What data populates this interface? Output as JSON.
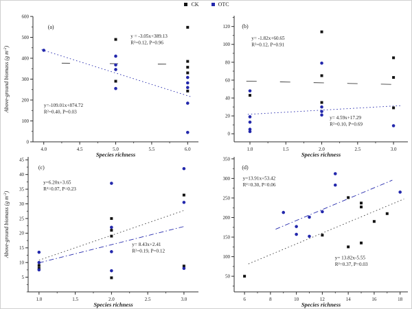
{
  "figure": {
    "legend": {
      "items": [
        {
          "label": "CK",
          "color": "#141414",
          "marker": "square"
        },
        {
          "label": "OTC",
          "color": "#2328ac",
          "marker": "square"
        }
      ]
    },
    "series_colors": {
      "CK": "#141414",
      "OTC": "#2328ac"
    },
    "line_colors": {
      "CK": "#3d3d3d",
      "OTC": "#2328ac"
    }
  },
  "chart_data": [
    {
      "id": "a",
      "panel_label": "(a)",
      "type": "scatter",
      "xlabel": "Species richness",
      "ylabel": {
        "text": "Above-ground biomass (g m",
        "sup": "-2",
        "end": ")"
      },
      "xlim": [
        3.85,
        6.15
      ],
      "ylim": [
        0,
        600
      ],
      "xtick_vals": [
        4.0,
        4.5,
        5.0,
        5.5,
        6.0
      ],
      "xtick_labels": [
        "4.0",
        "4.5",
        "5.0",
        "5.5",
        "6.0"
      ],
      "ytick_vals": [
        0,
        100,
        200,
        300,
        400,
        500,
        600
      ],
      "ytick_labels": [
        "0",
        "100",
        "200",
        "300",
        "400",
        "500",
        "600"
      ],
      "xminor_step": 0.25,
      "yminor_step": 50,
      "series": [
        {
          "name": "CK",
          "marker": "square",
          "points": [
            [
              5,
              490
            ],
            [
              5,
              290
            ],
            [
              6,
              548
            ],
            [
              6,
              385
            ],
            [
              6,
              357
            ],
            [
              6,
              330
            ],
            [
              6,
              243
            ]
          ]
        },
        {
          "name": "OTC",
          "marker": "circle",
          "points": [
            [
              4,
              438
            ],
            [
              5,
              410
            ],
            [
              5,
              368
            ],
            [
              5,
              346
            ],
            [
              5,
              255
            ],
            [
              6,
              308
            ],
            [
              6,
              282
            ],
            [
              6,
              260
            ],
            [
              6,
              185
            ],
            [
              6,
              45
            ]
          ]
        }
      ],
      "reg_lines": [
        {
          "series": "CK",
          "style": "sparsedash",
          "x1": 4.25,
          "y1": 376.2,
          "x2": 6.12,
          "y2": 370.5
        },
        {
          "series": "OTC",
          "style": "dot",
          "x1": 3.97,
          "y1": 441,
          "x2": 6.06,
          "y2": 214
        }
      ],
      "annotations": [
        {
          "owner": "CK",
          "fx": 0.59,
          "fy": 0.17,
          "lines": [
            "y = -3.05x+389.13",
            "R²=0.12, P=0.96"
          ]
        },
        {
          "owner": "OTC",
          "fx": 0.066,
          "fy": 0.72,
          "lines": [
            "y=-109.01x+874.72",
            "R²=0.40, P=0.03"
          ]
        }
      ],
      "label_fx": 0.09
    },
    {
      "id": "b",
      "panel_label": "(b)",
      "type": "scatter",
      "xlabel": "Species richness",
      "xlim": [
        0.78,
        3.2
      ],
      "ylim": [
        -9,
        132
      ],
      "xtick_vals": [
        1.0,
        1.5,
        2.0,
        2.5,
        3.0
      ],
      "xtick_labels": [
        "1.0",
        "1.5",
        "2.0",
        "2.5",
        "3.0"
      ],
      "ytick_vals": [
        0,
        20,
        40,
        60,
        80,
        100,
        120
      ],
      "ytick_labels": [
        "0",
        "20",
        "40",
        "60",
        "80",
        "100",
        "120"
      ],
      "xminor_step": 0.25,
      "yminor_step": 10,
      "series": [
        {
          "name": "CK",
          "marker": "square",
          "points": [
            [
              1,
              43
            ],
            [
              2,
              114
            ],
            [
              2,
              65
            ],
            [
              2,
              35
            ],
            [
              3,
              85
            ],
            [
              3,
              63
            ],
            [
              3,
              29
            ]
          ]
        },
        {
          "name": "OTC",
          "marker": "circle",
          "points": [
            [
              1,
              48
            ],
            [
              1,
              19
            ],
            [
              1,
              13
            ],
            [
              1,
              5
            ],
            [
              1,
              2.5
            ],
            [
              2,
              79
            ],
            [
              2,
              30
            ],
            [
              2,
              25
            ],
            [
              2,
              21
            ],
            [
              3,
              9
            ]
          ]
        }
      ],
      "reg_lines": [
        {
          "series": "CK",
          "style": "longdash",
          "x1": 0.95,
          "y1": 58.9,
          "x2": 3.15,
          "y2": 54.9
        },
        {
          "series": "OTC",
          "style": "dot",
          "x1": 0.97,
          "y1": 21.7,
          "x2": 3.12,
          "y2": 31.6
        }
      ],
      "annotations": [
        {
          "owner": "CK",
          "fx": 0.1,
          "fy": 0.19,
          "lines": [
            "y= -1.82x+60.65",
            "R²=0.12, P=0.91"
          ]
        },
        {
          "owner": "OTC",
          "fx": 0.55,
          "fy": 0.82,
          "lines": [
            "y= 4.59x+17.29",
            "R²=0.10, P=0.69"
          ]
        }
      ],
      "label_fx": 0.045
    },
    {
      "id": "c",
      "panel_label": "(c)",
      "type": "scatter",
      "xlabel": "Species richness",
      "ylabel": {
        "text": "Above-ground biomass (g m",
        "sup": "-2",
        "end": ")"
      },
      "xlim": [
        0.85,
        3.2
      ],
      "ylim": [
        0,
        46
      ],
      "xtick_vals": [
        1.0,
        1.5,
        2.0,
        2.5,
        3.0
      ],
      "xtick_labels": [
        "1.0",
        "1.5",
        "2.0",
        "2.5",
        "3.0"
      ],
      "ytick_vals": [
        5,
        10,
        15,
        20,
        25,
        30,
        35,
        40,
        45
      ],
      "ytick_labels": [
        "5",
        "10",
        "15",
        "20",
        "25",
        "30",
        "35",
        "40",
        "45"
      ],
      "xminor_step": 0.25,
      "yminor_step": 2.5,
      "series": [
        {
          "name": "CK",
          "marker": "square",
          "points": [
            [
              1,
              9
            ],
            [
              1,
              8
            ],
            [
              2,
              25
            ],
            [
              2,
              21
            ],
            [
              2,
              19
            ],
            [
              2,
              4.8
            ],
            [
              3,
              33
            ],
            [
              3,
              8.8
            ]
          ]
        },
        {
          "name": "OTC",
          "marker": "circle",
          "points": [
            [
              1,
              13.5
            ],
            [
              1,
              10
            ],
            [
              1,
              7.5
            ],
            [
              2,
              37
            ],
            [
              2,
              22
            ],
            [
              2,
              13.7
            ],
            [
              2,
              7.2
            ],
            [
              3,
              42
            ],
            [
              3,
              30.5
            ],
            [
              3,
              8
            ]
          ]
        }
      ],
      "reg_lines": [
        {
          "series": "CK",
          "style": "dot",
          "x1": 1.0,
          "y1": 10.8,
          "x2": 3.02,
          "y2": 27.9
        },
        {
          "series": "OTC",
          "style": "dashdot",
          "x1": 1.0,
          "y1": 9.9,
          "x2": 3.02,
          "y2": 22.4
        }
      ],
      "annotations": [
        {
          "owner": "OTC",
          "fx": 0.089,
          "fy": 0.2,
          "lines": [
            "y=6.20x+3.65",
            "R²=0.07, P=0.23"
          ]
        },
        {
          "owner": "CK",
          "fx": 0.61,
          "fy": 0.66,
          "lines": [
            "y= 8.43x+2.41",
            "R²=0.19, P=0.12"
          ]
        }
      ],
      "label_fx": 0.06
    },
    {
      "id": "d",
      "panel_label": "(d)",
      "type": "scatter",
      "xlabel": "Species richness",
      "xlim": [
        5.2,
        18.6
      ],
      "ylim": [
        10,
        355
      ],
      "xtick_vals": [
        6,
        8,
        10,
        12,
        14,
        16,
        18
      ],
      "xtick_labels": [
        "6",
        "8",
        "10",
        "12",
        "14",
        "16",
        "18"
      ],
      "ytick_vals": [
        50,
        100,
        150,
        200,
        250,
        300,
        350
      ],
      "ytick_labels": [
        "50",
        "100",
        "150",
        "200",
        "250",
        "300",
        "350"
      ],
      "xminor_step": 1,
      "yminor_step": 25,
      "series": [
        {
          "name": "CK",
          "marker": "square",
          "points": [
            [
              6,
              50
            ],
            [
              12,
              155
            ],
            [
              14,
              125
            ],
            [
              14,
              251
            ],
            [
              15,
              135
            ],
            [
              15,
              237
            ],
            [
              15,
              227
            ],
            [
              16,
              190
            ],
            [
              17,
              210
            ]
          ]
        },
        {
          "name": "OTC",
          "marker": "circle",
          "points": [
            [
              9,
              213
            ],
            [
              10,
              177
            ],
            [
              10,
              157
            ],
            [
              11,
              201
            ],
            [
              11,
              152
            ],
            [
              12,
              215
            ],
            [
              13,
              312
            ],
            [
              13,
              283
            ],
            [
              18,
              265
            ]
          ]
        }
      ],
      "reg_lines": [
        {
          "series": "CK",
          "style": "dot",
          "x1": 6.3,
          "y1": 81.5,
          "x2": 18.3,
          "y2": 247.4
        },
        {
          "series": "OTC",
          "style": "dashdot",
          "x1": 8.4,
          "y1": 170.2,
          "x2": 17.4,
          "y2": 295.5
        }
      ],
      "annotations": [
        {
          "owner": "OTC",
          "fx": 0.05,
          "fy": 0.17,
          "lines": [
            "y=13.91x+53.42",
            "R²=0.30, P=0.06"
          ]
        },
        {
          "owner": "CK",
          "fx": 0.58,
          "fy": 0.76,
          "lines": [
            "y= 13.82x-5.55",
            "R²=0.37, P=0.03"
          ]
        }
      ],
      "label_fx": 0.045
    }
  ]
}
